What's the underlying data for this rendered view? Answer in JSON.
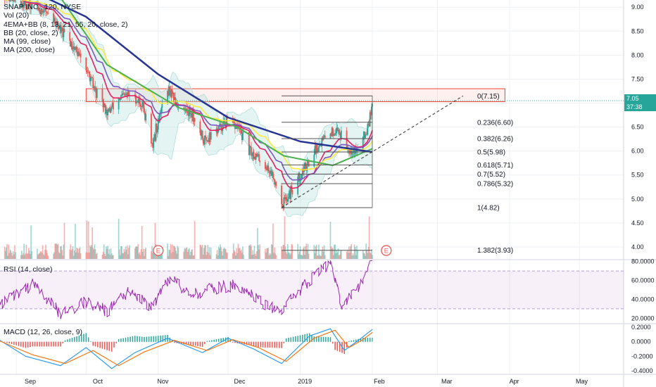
{
  "header": {
    "symbol_line": "SNAP INC., 120, NYSE",
    "indicators": [
      "Vol (20)",
      "4EMA+BB (8, 13, 21, 55, 20, close, 2)",
      "BB (20, close, 2)",
      "MA (99, close)",
      "MA (200, close)"
    ]
  },
  "price_tags": {
    "last_price": "7.05",
    "countdown": "37:38"
  },
  "colors": {
    "up": "#26a69a",
    "down": "#ef5350",
    "ema8": "#e91e63",
    "ema13": "#7e57c2",
    "ema21": "#ffeb3b",
    "ema55": "#4caf50",
    "ma200": "#283593",
    "bb": "#b2dfdb",
    "rsi": "#9c27b0",
    "macd": "#2196f3",
    "signal": "#ff6d00",
    "resistance_box": "#f44336",
    "fib": "#555555"
  },
  "chart_data": [
    {
      "type": "candlestick",
      "title": "SNAP INC., 120, NYSE",
      "xlim": [
        "2018-08-25",
        "2019-05-20"
      ],
      "ylim": [
        3.75,
        9.15
      ],
      "y_ticks": [
        "9.00",
        "8.50",
        "8.00",
        "7.50",
        "7.00",
        "6.50",
        "6.00",
        "5.50",
        "5.00",
        "4.50",
        "4.00"
      ],
      "x_ticks": [
        "Sep",
        "Oct",
        "Nov",
        "Dec",
        "2019",
        "Feb",
        "Mar",
        "Apr",
        "May"
      ],
      "close_path": [
        {
          "date": "2018-08-25",
          "value": 9.3
        },
        {
          "date": "2018-09-05",
          "value": 9.05
        },
        {
          "date": "2018-09-15",
          "value": 8.9
        },
        {
          "date": "2018-09-20",
          "value": 8.5
        },
        {
          "date": "2018-09-25",
          "value": 8.2
        },
        {
          "date": "2018-09-30",
          "value": 7.8
        },
        {
          "date": "2018-10-05",
          "value": 7.2
        },
        {
          "date": "2018-10-10",
          "value": 6.8
        },
        {
          "date": "2018-10-15",
          "value": 7.1
        },
        {
          "date": "2018-10-20",
          "value": 7.2
        },
        {
          "date": "2018-10-25",
          "value": 6.95
        },
        {
          "date": "2018-10-29",
          "value": 6.1
        },
        {
          "date": "2018-11-02",
          "value": 6.9
        },
        {
          "date": "2018-11-05",
          "value": 7.25
        },
        {
          "date": "2018-11-10",
          "value": 6.9
        },
        {
          "date": "2018-11-15",
          "value": 6.8
        },
        {
          "date": "2018-11-20",
          "value": 6.2
        },
        {
          "date": "2018-11-25",
          "value": 6.4
        },
        {
          "date": "2018-11-30",
          "value": 6.6
        },
        {
          "date": "2018-12-05",
          "value": 6.5
        },
        {
          "date": "2018-12-10",
          "value": 6.0
        },
        {
          "date": "2018-12-15",
          "value": 5.8
        },
        {
          "date": "2018-12-20",
          "value": 5.5
        },
        {
          "date": "2018-12-24",
          "value": 4.9
        },
        {
          "date": "2018-12-27",
          "value": 5.1
        },
        {
          "date": "2019-01-02",
          "value": 5.6
        },
        {
          "date": "2019-01-08",
          "value": 6.1
        },
        {
          "date": "2019-01-14",
          "value": 6.4
        },
        {
          "date": "2019-01-17",
          "value": 6.45
        },
        {
          "date": "2019-01-20",
          "value": 6.1
        },
        {
          "date": "2019-01-25",
          "value": 6.0
        },
        {
          "date": "2019-01-29",
          "value": 6.4
        },
        {
          "date": "2019-02-01",
          "value": 7.05
        }
      ],
      "moving_averages": [
        {
          "name": "MA (200, close)",
          "points": [
            {
              "date": "2018-09-05",
              "value": 9.4
            },
            {
              "date": "2018-10-01",
              "value": 8.8
            },
            {
              "date": "2018-11-01",
              "value": 7.6
            },
            {
              "date": "2018-12-01",
              "value": 6.7
            },
            {
              "date": "2019-01-01",
              "value": 6.2
            },
            {
              "date": "2019-02-01",
              "value": 5.98
            }
          ]
        },
        {
          "name": "EMA 55",
          "points": [
            {
              "date": "2018-09-20",
              "value": 9.2
            },
            {
              "date": "2018-10-10",
              "value": 7.8
            },
            {
              "date": "2018-11-10",
              "value": 6.9
            },
            {
              "date": "2018-12-05",
              "value": 6.5
            },
            {
              "date": "2018-12-25",
              "value": 5.9
            },
            {
              "date": "2019-01-15",
              "value": 5.7
            },
            {
              "date": "2019-02-01",
              "value": 6.05
            }
          ]
        }
      ],
      "resistance_zone": {
        "date_from": "2018-10-01",
        "date_to": "2019-03-30",
        "price_low": 7.03,
        "price_high": 7.3
      },
      "dashed_trendline": [
        {
          "date": "2018-12-24",
          "value": 4.82
        },
        {
          "date": "2019-03-12",
          "value": 7.15
        }
      ],
      "earnings_markers": [
        {
          "date": "2018-11-01",
          "label": "E"
        },
        {
          "date": "2019-02-07",
          "label": "E"
        }
      ],
      "fibonacci": [
        {
          "level": 0,
          "price": 7.15,
          "label": "0(7.15)"
        },
        {
          "level": 0.236,
          "price": 6.6,
          "label": "0.236(6.60)"
        },
        {
          "level": 0.382,
          "price": 6.26,
          "label": "0.382(6.26)"
        },
        {
          "level": 0.5,
          "price": 5.98,
          "label": "0.5(5.98)"
        },
        {
          "level": 0.618,
          "price": 5.71,
          "label": "0.618(5.71)"
        },
        {
          "level": 0.7,
          "price": 5.52,
          "label": "0.7(5.52)"
        },
        {
          "level": 0.786,
          "price": 5.32,
          "label": "0.786(5.32)"
        },
        {
          "level": 1,
          "price": 4.82,
          "label": "1(4.82)"
        },
        {
          "level": 1.382,
          "price": 3.93,
          "label": "1.382(3.93)"
        }
      ]
    },
    {
      "type": "line",
      "title": "RSI (14, close)",
      "ylim": [
        15,
        82
      ],
      "y_ticks": [
        "80.0000",
        "60.0000",
        "40.0000",
        "20.0000"
      ],
      "bands": [
        30,
        70
      ],
      "series": [
        {
          "name": "RSI (14, close)",
          "points": [
            {
              "date": "2018-08-25",
              "value": 35
            },
            {
              "date": "2018-09-08",
              "value": 55
            },
            {
              "date": "2018-09-20",
              "value": 25
            },
            {
              "date": "2018-10-01",
              "value": 38
            },
            {
              "date": "2018-10-10",
              "value": 28
            },
            {
              "date": "2018-10-20",
              "value": 50
            },
            {
              "date": "2018-10-29",
              "value": 32
            },
            {
              "date": "2018-11-06",
              "value": 62
            },
            {
              "date": "2018-11-15",
              "value": 45
            },
            {
              "date": "2018-11-25",
              "value": 52
            },
            {
              "date": "2018-12-05",
              "value": 55
            },
            {
              "date": "2018-12-15",
              "value": 38
            },
            {
              "date": "2018-12-24",
              "value": 27
            },
            {
              "date": "2019-01-04",
              "value": 58
            },
            {
              "date": "2019-01-14",
              "value": 78
            },
            {
              "date": "2019-01-19",
              "value": 32
            },
            {
              "date": "2019-01-26",
              "value": 52
            },
            {
              "date": "2019-02-01",
              "value": 80
            }
          ]
        }
      ]
    },
    {
      "type": "line",
      "title": "MACD (12, 26, close, 9)",
      "ylim": [
        -0.45,
        0.25
      ],
      "y_ticks": [
        "0.2000",
        "0.0000",
        "-0.2000",
        "-0.4000"
      ],
      "series": [
        {
          "name": "MACD",
          "points": [
            {
              "date": "2018-08-25",
              "value": 0.02
            },
            {
              "date": "2018-09-05",
              "value": -0.2
            },
            {
              "date": "2018-09-20",
              "value": -0.33
            },
            {
              "date": "2018-10-01",
              "value": -0.08
            },
            {
              "date": "2018-10-12",
              "value": -0.37
            },
            {
              "date": "2018-10-22",
              "value": -0.15
            },
            {
              "date": "2018-11-05",
              "value": 0.05
            },
            {
              "date": "2018-11-20",
              "value": -0.15
            },
            {
              "date": "2018-12-01",
              "value": 0.05
            },
            {
              "date": "2018-12-12",
              "value": -0.1
            },
            {
              "date": "2018-12-24",
              "value": -0.3
            },
            {
              "date": "2019-01-05",
              "value": 0.08
            },
            {
              "date": "2019-01-14",
              "value": 0.18
            },
            {
              "date": "2019-01-20",
              "value": -0.12
            },
            {
              "date": "2019-01-26",
              "value": 0.02
            },
            {
              "date": "2019-02-01",
              "value": 0.17
            }
          ]
        },
        {
          "name": "Signal",
          "points": [
            {
              "date": "2018-08-25",
              "value": 0.01
            },
            {
              "date": "2018-09-08",
              "value": -0.18
            },
            {
              "date": "2018-09-22",
              "value": -0.3
            },
            {
              "date": "2018-10-04",
              "value": -0.12
            },
            {
              "date": "2018-10-15",
              "value": -0.33
            },
            {
              "date": "2018-10-26",
              "value": -0.14
            },
            {
              "date": "2018-11-08",
              "value": 0.02
            },
            {
              "date": "2018-11-22",
              "value": -0.12
            },
            {
              "date": "2018-12-03",
              "value": 0.03
            },
            {
              "date": "2018-12-14",
              "value": -0.08
            },
            {
              "date": "2018-12-26",
              "value": -0.27
            },
            {
              "date": "2019-01-07",
              "value": 0.05
            },
            {
              "date": "2019-01-16",
              "value": 0.16
            },
            {
              "date": "2019-01-22",
              "value": -0.08
            },
            {
              "date": "2019-01-28",
              "value": 0.03
            },
            {
              "date": "2019-02-01",
              "value": 0.13
            }
          ]
        }
      ]
    }
  ]
}
